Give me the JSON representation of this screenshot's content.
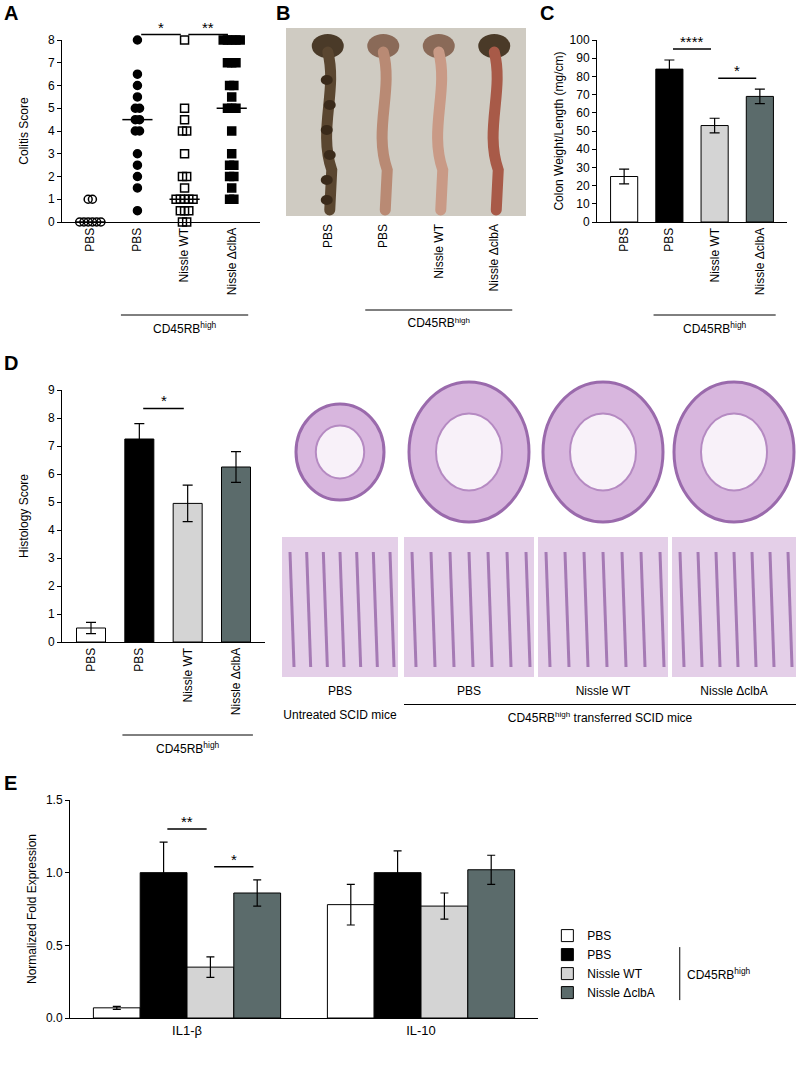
{
  "chart_data": [
    {
      "panel": "A",
      "type": "scatter",
      "y_label": "Colitis Score",
      "categories": [
        "PBS",
        "PBS",
        "Nissle WT",
        "Nissle ΔclbA"
      ],
      "groups": [
        {
          "marker": "circle-open",
          "color": "#000000",
          "values": [
            0,
            0,
            0,
            0,
            0,
            0,
            1,
            1
          ],
          "median": 0
        },
        {
          "marker": "circle",
          "color": "#000000",
          "values": [
            8,
            6.5,
            6,
            5.5,
            5,
            5,
            4.5,
            4.5,
            4,
            4,
            3,
            2.5,
            2,
            1.5,
            0.5
          ],
          "median": 4.5
        },
        {
          "marker": "square-open",
          "color": "#000000",
          "values": [
            8,
            5,
            4.5,
            4,
            4,
            3,
            2,
            2,
            1.5,
            1,
            1,
            1,
            1,
            1,
            0.5,
            0.5,
            0.5,
            0,
            0
          ],
          "median": 1
        },
        {
          "marker": "square",
          "color": "#000000",
          "values": [
            8,
            8,
            8,
            8,
            8,
            7,
            7,
            7,
            6,
            6,
            5.5,
            5,
            5,
            5,
            4,
            3,
            2.5,
            2.5,
            2,
            2,
            1.5,
            1,
            1
          ],
          "median": 5
        }
      ],
      "ylim": [
        0,
        8
      ],
      "yticks": [
        0,
        1,
        2,
        3,
        4,
        5,
        6,
        7,
        8
      ],
      "group_label": {
        "text": "CD45RB",
        "sup": "high",
        "span": [
          1,
          3
        ]
      },
      "significance": [
        {
          "between": [
            1,
            2
          ],
          "label": "*"
        },
        {
          "between": [
            2,
            3
          ],
          "label": "**"
        }
      ]
    },
    {
      "panel": "C",
      "type": "bar",
      "y_label": "Colon Weight/Length (mg/cm)",
      "categories": [
        "PBS",
        "PBS",
        "Nissle WT",
        "Nissle ΔclbA"
      ],
      "values": [
        25,
        84,
        53,
        69
      ],
      "errors": [
        4,
        5,
        4,
        4
      ],
      "colors": [
        "#ffffff",
        "#000000",
        "#d4d4d4",
        "#5b6b6b"
      ],
      "ylim": [
        0,
        100
      ],
      "yticks": [
        0,
        10,
        20,
        30,
        40,
        50,
        60,
        70,
        80,
        90,
        100
      ],
      "group_label": {
        "text": "CD45RB",
        "sup": "high",
        "span": [
          1,
          3
        ]
      },
      "significance": [
        {
          "between": [
            1,
            2
          ],
          "label": "****"
        },
        {
          "between": [
            2,
            3
          ],
          "label": "*"
        }
      ]
    },
    {
      "panel": "D",
      "type": "bar",
      "y_label": "Histology Score",
      "categories": [
        "PBS",
        "PBS",
        "Nissle WT",
        "Nissle ΔclbA"
      ],
      "values": [
        0.5,
        7.25,
        4.95,
        6.25
      ],
      "errors": [
        0.2,
        0.55,
        0.65,
        0.55
      ],
      "colors": [
        "#ffffff",
        "#000000",
        "#d4d4d4",
        "#5b6b6b"
      ],
      "ylim": [
        0,
        9
      ],
      "yticks": [
        0,
        1,
        2,
        3,
        4,
        5,
        6,
        7,
        8,
        9
      ],
      "group_label": {
        "text": "CD45RB",
        "sup": "high",
        "span": [
          1,
          3
        ]
      },
      "significance": [
        {
          "between": [
            1,
            2
          ],
          "label": "*"
        }
      ]
    },
    {
      "panel": "E",
      "type": "bar",
      "y_label": "Normalized Fold Expression",
      "categories": [
        "IL1-β",
        "IL-10"
      ],
      "series": [
        {
          "name": "PBS",
          "color": "#ffffff",
          "values": [
            0.07,
            0.78
          ],
          "errors": [
            0.01,
            0.14
          ]
        },
        {
          "name": "PBS",
          "color": "#000000",
          "values": [
            1.0,
            1.0
          ],
          "errors": [
            0.21,
            0.15
          ]
        },
        {
          "name": "Nissle WT",
          "color": "#d4d4d4",
          "values": [
            0.35,
            0.77
          ],
          "errors": [
            0.07,
            0.09
          ]
        },
        {
          "name": "Nissle ΔclbA",
          "color": "#5b6b6b",
          "values": [
            0.86,
            1.02
          ],
          "errors": [
            0.09,
            0.1
          ]
        }
      ],
      "ylim": [
        0,
        1.5
      ],
      "yticks": [
        {
          "value": 0,
          "label": "0.0"
        },
        {
          "value": 0.5,
          "label": "0.5"
        },
        {
          "value": 1,
          "label": "1.0"
        },
        {
          "value": 1.5,
          "label": "1.5"
        }
      ],
      "legend": "right",
      "legend_group": {
        "text": "CD45RB",
        "sup": "high",
        "span": [
          1,
          3
        ]
      },
      "significance": [
        {
          "category": 0,
          "between": [
            1,
            2
          ],
          "label": "**"
        },
        {
          "category": 0,
          "between": [
            2,
            3
          ],
          "label": "*"
        }
      ]
    }
  ],
  "photos": [
    {
      "panel": "B",
      "labels": [
        "PBS",
        "PBS",
        "Nissle WT",
        "Nissle ΔclbA"
      ],
      "group_label": {
        "text": "CD45RB",
        "sup": "high",
        "span": [
          1,
          3
        ]
      }
    },
    {
      "labels": [
        "PBS",
        "PBS",
        "Nissle WT",
        "Nissle ΔclbA"
      ],
      "group_labels": [
        {
          "text": "Untreated SCID mice",
          "span": [
            0,
            0
          ]
        },
        {
          "text": "CD45RB",
          "sup": "high",
          "tail": " transferred SCID mice",
          "span": [
            1,
            3
          ]
        }
      ]
    }
  ]
}
